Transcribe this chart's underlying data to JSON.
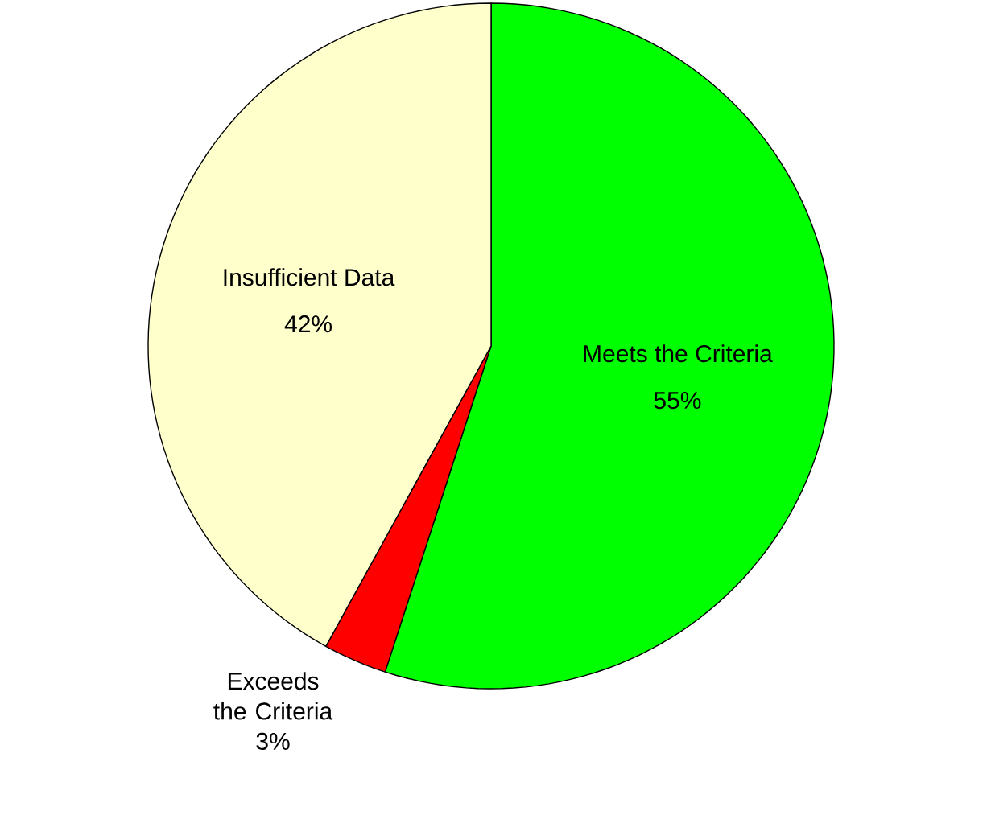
{
  "chart_data": {
    "type": "pie",
    "categories": [
      "Meets the Criteria",
      "Exceeds the Criteria",
      "Insufficient Data"
    ],
    "values": [
      55,
      3,
      42
    ],
    "value_labels": [
      "55%",
      "3%",
      "42%"
    ],
    "colors": [
      "#00ff00",
      "#ff0000",
      "#ffffcc"
    ]
  }
}
